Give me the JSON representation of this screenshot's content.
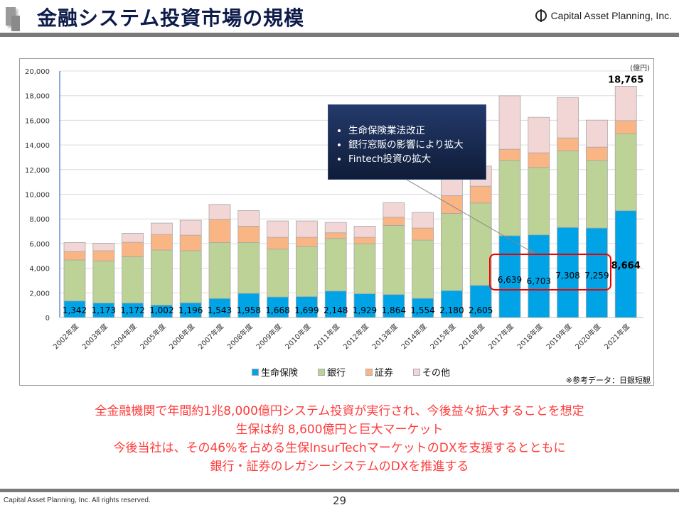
{
  "header": {
    "title": "金融システム投資市場の規模",
    "company": "Capital Asset Planning, Inc."
  },
  "chart_data": {
    "type": "bar",
    "stacked": true,
    "unit_label": "(億円)",
    "categories": [
      "2002年度",
      "2003年度",
      "2004年度",
      "2005年度",
      "2006年度",
      "2007年度",
      "2008年度",
      "2009年度",
      "2010年度",
      "2011年度",
      "2012年度",
      "2013年度",
      "2014年度",
      "2015年度",
      "2016年度",
      "2017年度",
      "2018年度",
      "2019年度",
      "2020年度",
      "2021年度"
    ],
    "series": [
      {
        "name": "生命保険",
        "color": "#00a3e6",
        "values": [
          1342,
          1173,
          1172,
          1002,
          1196,
          1543,
          1958,
          1668,
          1699,
          2148,
          1929,
          1864,
          1554,
          2180,
          2605,
          6639,
          6703,
          7308,
          7259,
          8664
        ]
      },
      {
        "name": "銀行",
        "color": "#bcd296",
        "values": [
          3324,
          3416,
          3762,
          4470,
          4218,
          4543,
          4128,
          3881,
          4080,
          4265,
          4061,
          5605,
          4724,
          6268,
          6688,
          6110,
          5470,
          6228,
          5490,
          6254
        ]
      },
      {
        "name": "証券",
        "color": "#fab584",
        "values": [
          691,
          825,
          1172,
          1267,
          1268,
          1882,
          1325,
          960,
          730,
          461,
          519,
          672,
          980,
          1440,
          1363,
          902,
          1190,
          1037,
          1075,
          1056
        ]
      },
      {
        "name": "その他",
        "color": "#f2d6d6",
        "values": [
          729,
          615,
          729,
          922,
          1209,
          1210,
          1267,
          1325,
          1325,
          844,
          902,
          1171,
          1267,
          1512,
          1632,
          4339,
          2880,
          3283,
          2189,
          2791
        ]
      }
    ],
    "data_labels": [
      "1,342",
      "1,173",
      "1,172",
      "1,002",
      "1,196",
      "1,543",
      "1,958",
      "1,668",
      "1,699",
      "2,148",
      "1,929",
      "1,864",
      "1,554",
      "2,180",
      "2,605",
      "6,639",
      "6,703",
      "7,308",
      "7,259",
      "8,664"
    ],
    "total_label": "18,765",
    "ylim": [
      0,
      20000
    ],
    "yticks": [
      "0",
      "2,000",
      "4,000",
      "6,000",
      "8,000",
      "10,000",
      "12,000",
      "14,000",
      "16,000",
      "18,000",
      "20,000"
    ],
    "grid": true,
    "legend": "bottom",
    "annotation": [
      "生命保険業法改正",
      "銀行窓販の影響により拡大",
      "Fintech投資の拡大"
    ],
    "source": "※参考データ：日銀短観"
  },
  "messages": [
    "全金融機関で年間約1兆8,000億円システム投資が実行され、今後益々拡大することを想定",
    "生保は約 8,600億円と巨大マーケット",
    "今後当社は、その46%を占める生保InsurTechマーケットのDXを支援するとともに",
    "銀行・証券のレガシーシステムのDXを推進する"
  ],
  "footer": {
    "copyright": "Capital Asset Planning, Inc. All rights reserved.",
    "page": "29"
  }
}
